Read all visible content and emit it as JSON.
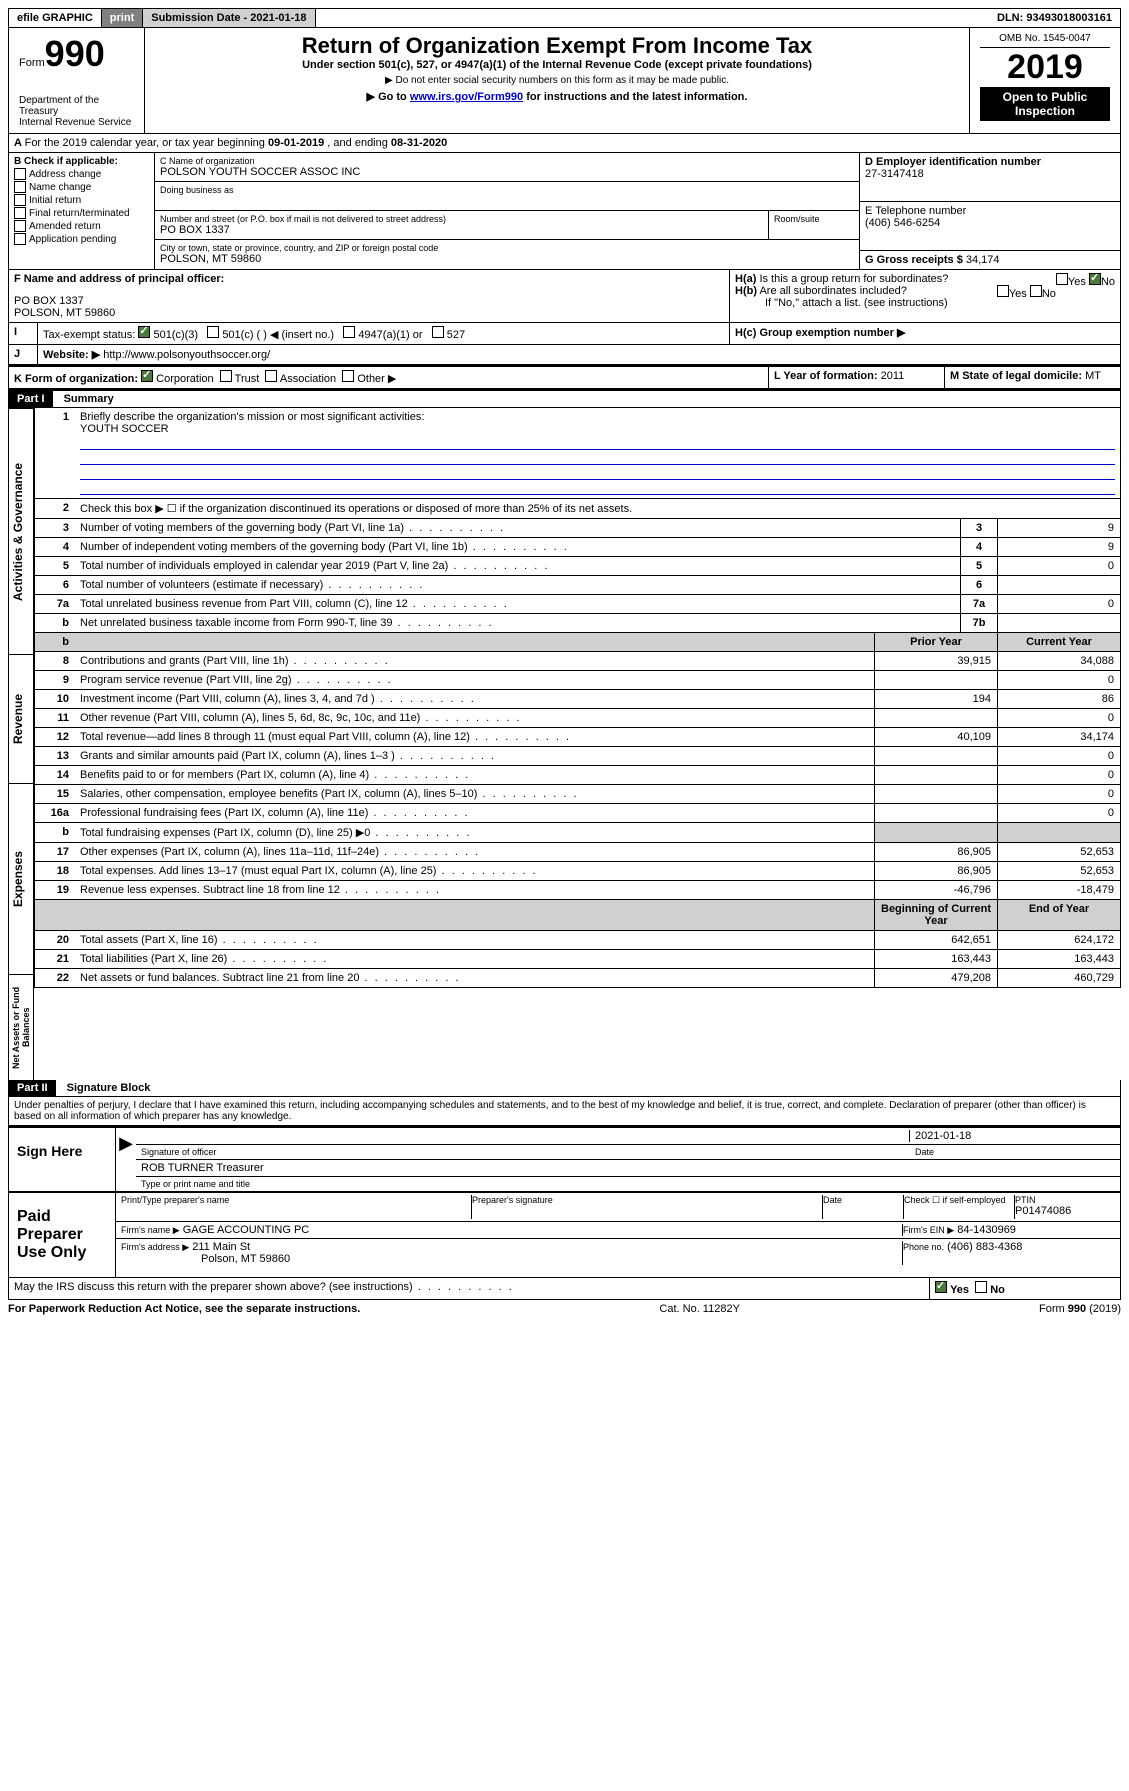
{
  "topbar": {
    "efile": "efile GRAPHIC",
    "print": "print",
    "subdate_label": "Submission Date - 2021-01-18",
    "dln": "DLN: 93493018003161"
  },
  "header": {
    "form_small": "Form",
    "form_num": "990",
    "dept": "Department of the Treasury",
    "irs": "Internal Revenue Service",
    "title": "Return of Organization Exempt From Income Tax",
    "subtitle": "Under section 501(c), 527, or 4947(a)(1) of the Internal Revenue Code (except private foundations)",
    "note1": "▶ Do not enter social security numbers on this form as it may be made public.",
    "note2_pre": "▶ Go to ",
    "note2_link": "www.irs.gov/Form990",
    "note2_post": " for instructions and the latest information.",
    "omb": "OMB No. 1545-0047",
    "year": "2019",
    "open": "Open to Public Inspection"
  },
  "periodA": {
    "text_pre": "For the 2019 calendar year, or tax year beginning ",
    "begin": "09-01-2019",
    "mid": " , and ending ",
    "end": "08-31-2020"
  },
  "sectionB": {
    "label": "B Check if applicable:",
    "items": [
      "Address change",
      "Name change",
      "Initial return",
      "Final return/terminated",
      "Amended return",
      "Application pending"
    ]
  },
  "sectionC": {
    "name_label": "C Name of organization",
    "name": "POLSON YOUTH SOCCER ASSOC INC",
    "dba_label": "Doing business as",
    "addr_label": "Number and street (or P.O. box if mail is not delivered to street address)",
    "room_label": "Room/suite",
    "addr": "PO BOX 1337",
    "city_label": "City or town, state or province, country, and ZIP or foreign postal code",
    "city": "POLSON, MT  59860"
  },
  "sectionD": {
    "label": "D Employer identification number",
    "value": "27-3147418"
  },
  "sectionE": {
    "label": "E Telephone number",
    "value": "(406) 546-6254"
  },
  "sectionG": {
    "label": "G Gross receipts $",
    "value": "34,174"
  },
  "sectionF": {
    "label": "F  Name and address of principal officer:",
    "line1": "PO BOX 1337",
    "line2": "POLSON, MT  59860"
  },
  "sectionH": {
    "ha": "H(a)  Is this a group return for subordinates?",
    "hb": "H(b)  Are all subordinates included?",
    "hb_note": "If \"No,\" attach a list. (see instructions)",
    "hc": "H(c)  Group exemption number ▶",
    "yes": "Yes",
    "no": "No"
  },
  "sectionI": {
    "label": "Tax-exempt status:",
    "opts": [
      "501(c)(3)",
      "501(c) (   ) ◀ (insert no.)",
      "4947(a)(1) or",
      "527"
    ]
  },
  "sectionJ": {
    "label": "Website: ▶",
    "value": "http://www.polsonyouthsoccer.org/"
  },
  "sectionK": {
    "label": "K Form of organization:",
    "opts": [
      "Corporation",
      "Trust",
      "Association",
      "Other ▶"
    ]
  },
  "sectionL": {
    "label": "L Year of formation:",
    "value": "2011"
  },
  "sectionM": {
    "label": "M State of legal domicile:",
    "value": "MT"
  },
  "part1": {
    "hdr": "Part I",
    "title": "Summary",
    "line1_label": "Briefly describe the organization's mission or most significant activities:",
    "line1_val": "YOUTH SOCCER",
    "line2": "Check this box ▶ ☐  if the organization discontinued its operations or disposed of more than 25% of its net assets.",
    "vlabels": [
      "Activities & Governance",
      "Revenue",
      "Expenses",
      "Net Assets or Fund Balances"
    ],
    "col_prior": "Prior Year",
    "col_current": "Current Year",
    "col_begin": "Beginning of Current Year",
    "col_end": "End of Year",
    "rows_top": [
      {
        "n": "3",
        "d": "Number of voting members of the governing body (Part VI, line 1a)",
        "box": "3",
        "v": "9"
      },
      {
        "n": "4",
        "d": "Number of independent voting members of the governing body (Part VI, line 1b)",
        "box": "4",
        "v": "9"
      },
      {
        "n": "5",
        "d": "Total number of individuals employed in calendar year 2019 (Part V, line 2a)",
        "box": "5",
        "v": "0"
      },
      {
        "n": "6",
        "d": "Total number of volunteers (estimate if necessary)",
        "box": "6",
        "v": ""
      },
      {
        "n": "7a",
        "d": "Total unrelated business revenue from Part VIII, column (C), line 12",
        "box": "7a",
        "v": "0"
      },
      {
        "n": "b",
        "d": "Net unrelated business taxable income from Form 990-T, line 39",
        "box": "7b",
        "v": ""
      }
    ],
    "rows_rev": [
      {
        "n": "8",
        "d": "Contributions and grants (Part VIII, line 1h)",
        "p": "39,915",
        "c": "34,088"
      },
      {
        "n": "9",
        "d": "Program service revenue (Part VIII, line 2g)",
        "p": "",
        "c": "0"
      },
      {
        "n": "10",
        "d": "Investment income (Part VIII, column (A), lines 3, 4, and 7d )",
        "p": "194",
        "c": "86"
      },
      {
        "n": "11",
        "d": "Other revenue (Part VIII, column (A), lines 5, 6d, 8c, 9c, 10c, and 11e)",
        "p": "",
        "c": "0"
      },
      {
        "n": "12",
        "d": "Total revenue—add lines 8 through 11 (must equal Part VIII, column (A), line 12)",
        "p": "40,109",
        "c": "34,174"
      }
    ],
    "rows_exp": [
      {
        "n": "13",
        "d": "Grants and similar amounts paid (Part IX, column (A), lines 1–3 )",
        "p": "",
        "c": "0"
      },
      {
        "n": "14",
        "d": "Benefits paid to or for members (Part IX, column (A), line 4)",
        "p": "",
        "c": "0"
      },
      {
        "n": "15",
        "d": "Salaries, other compensation, employee benefits (Part IX, column (A), lines 5–10)",
        "p": "",
        "c": "0"
      },
      {
        "n": "16a",
        "d": "Professional fundraising fees (Part IX, column (A), line 11e)",
        "p": "",
        "c": "0"
      },
      {
        "n": "b",
        "d": "Total fundraising expenses (Part IX, column (D), line 25) ▶0",
        "p": "SHADE",
        "c": "SHADE"
      },
      {
        "n": "17",
        "d": "Other expenses (Part IX, column (A), lines 11a–11d, 11f–24e)",
        "p": "86,905",
        "c": "52,653"
      },
      {
        "n": "18",
        "d": "Total expenses. Add lines 13–17 (must equal Part IX, column (A), line 25)",
        "p": "86,905",
        "c": "52,653"
      },
      {
        "n": "19",
        "d": "Revenue less expenses. Subtract line 18 from line 12",
        "p": "-46,796",
        "c": "-18,479"
      }
    ],
    "rows_net": [
      {
        "n": "20",
        "d": "Total assets (Part X, line 16)",
        "p": "642,651",
        "c": "624,172"
      },
      {
        "n": "21",
        "d": "Total liabilities (Part X, line 26)",
        "p": "163,443",
        "c": "163,443"
      },
      {
        "n": "22",
        "d": "Net assets or fund balances. Subtract line 21 from line 20",
        "p": "479,208",
        "c": "460,729"
      }
    ]
  },
  "part2": {
    "hdr": "Part II",
    "title": "Signature Block",
    "perjury": "Under penalties of perjury, I declare that I have examined this return, including accompanying schedules and statements, and to the best of my knowledge and belief, it is true, correct, and complete. Declaration of preparer (other than officer) is based on all information of which preparer has any knowledge.",
    "sign_here": "Sign Here",
    "sig_officer": "Signature of officer",
    "date_label": "Date",
    "sig_date": "2021-01-18",
    "officer_name": "ROB TURNER  Treasurer",
    "type_name": "Type or print name and title",
    "paid": "Paid Preparer Use Only",
    "prep_name_label": "Print/Type preparer's name",
    "prep_sig_label": "Preparer's signature",
    "check_if": "Check ☐ if self-employed",
    "ptin_label": "PTIN",
    "ptin": "P01474086",
    "firm_name_label": "Firm's name    ▶",
    "firm_name": "GAGE ACCOUNTING PC",
    "firm_ein_label": "Firm's EIN ▶",
    "firm_ein": "84-1430969",
    "firm_addr_label": "Firm's address ▶",
    "firm_addr1": "211 Main St",
    "firm_addr2": "Polson, MT  59860",
    "phone_label": "Phone no.",
    "phone": "(406) 883-4368",
    "discuss": "May the IRS discuss this return with the preparer shown above? (see instructions)",
    "yes": "Yes",
    "no": "No"
  },
  "footer": {
    "paperwork": "For Paperwork Reduction Act Notice, see the separate instructions.",
    "catno": "Cat. No. 11282Y",
    "formref": "Form 990 (2019)"
  }
}
